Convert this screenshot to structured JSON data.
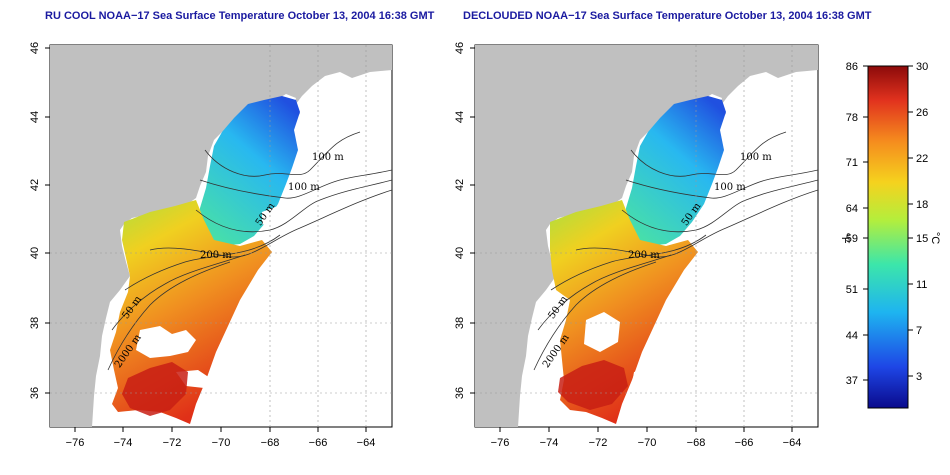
{
  "maps": [
    {
      "id": "left",
      "title": "RU COOL NOAA−17 Sea Surface Temperature October 13, 2004 16:38 GMT",
      "contour_labels": [
        "100 m",
        "100 m",
        "50 m",
        "200 m",
        "50 m",
        "2000 m"
      ]
    },
    {
      "id": "right",
      "title": "DECLOUDED NOAA−17 Sea Surface Temperature October 13, 2004 16:38 GMT",
      "contour_labels": [
        "100 m",
        "100 m",
        "50 m",
        "200 m",
        "50 m",
        "2000 m"
      ]
    }
  ],
  "axes": {
    "x_ticks": [
      "−76",
      "−74",
      "−72",
      "−70",
      "−68",
      "−66",
      "−64"
    ],
    "y_ticks": [
      "46",
      "44",
      "42",
      "40",
      "38",
      "36"
    ],
    "x_range": [
      -77,
      -63
    ],
    "y_range": [
      35,
      46
    ]
  },
  "colorbar": {
    "f_ticks": [
      "86",
      "78",
      "71",
      "64",
      "59",
      "51",
      "44",
      "37"
    ],
    "c_ticks": [
      "30",
      "26",
      "22",
      "18",
      "15",
      "11",
      "7",
      "3"
    ],
    "f_unit": "°F",
    "c_unit": "°C",
    "range_c": [
      0,
      30
    ]
  },
  "colors": {
    "land": "#c0c0c0",
    "ocean": "#ffffff",
    "title": "#1a1aa0"
  }
}
